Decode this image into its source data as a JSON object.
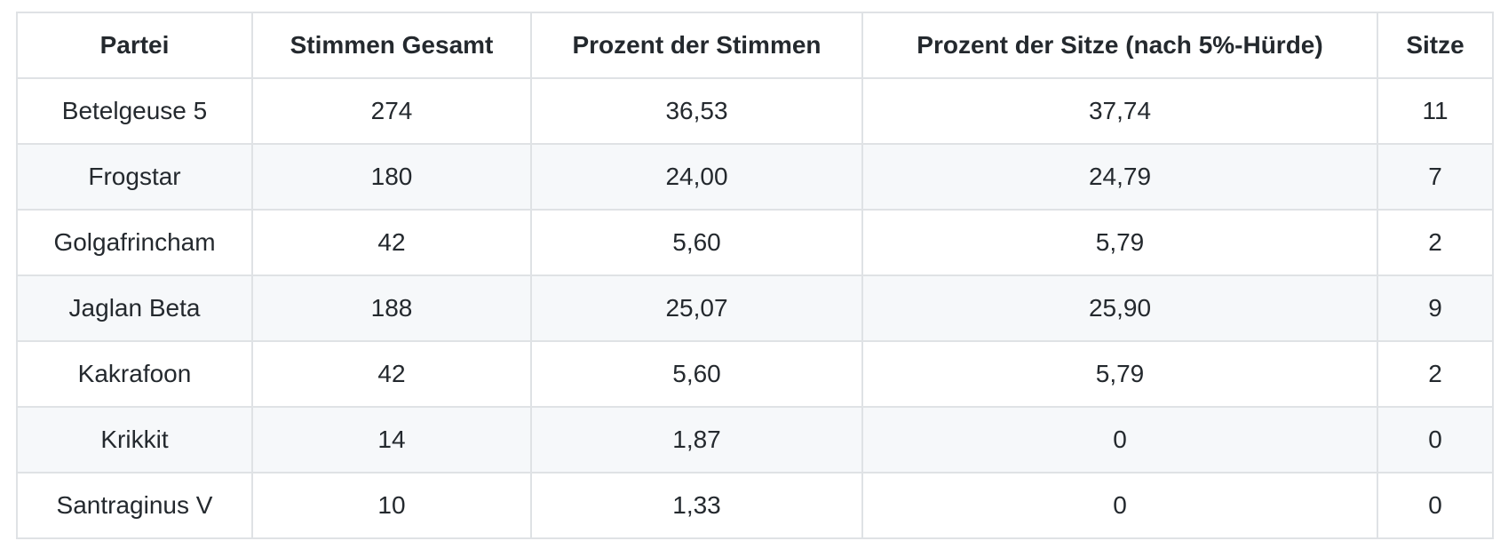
{
  "table": {
    "columns": [
      {
        "key": "partei",
        "label": "Partei"
      },
      {
        "key": "stimmen-gesamt",
        "label": "Stimmen Gesamt"
      },
      {
        "key": "prozent-stimmen",
        "label": "Prozent der Stimmen"
      },
      {
        "key": "prozent-sitze",
        "label": "Prozent der Sitze (nach 5%-Hürde)"
      },
      {
        "key": "sitze",
        "label": "Sitze"
      }
    ],
    "rows": [
      {
        "partei": "Betelgeuse 5",
        "stimmen_gesamt": "274",
        "prozent_stimmen": "36,53",
        "prozent_sitze": "37,74",
        "sitze": "11"
      },
      {
        "partei": "Frogstar",
        "stimmen_gesamt": "180",
        "prozent_stimmen": "24,00",
        "prozent_sitze": "24,79",
        "sitze": "7"
      },
      {
        "partei": "Golgafrincham",
        "stimmen_gesamt": "42",
        "prozent_stimmen": "5,60",
        "prozent_sitze": "5,79",
        "sitze": "2"
      },
      {
        "partei": "Jaglan Beta",
        "stimmen_gesamt": "188",
        "prozent_stimmen": "25,07",
        "prozent_sitze": "25,90",
        "sitze": "9"
      },
      {
        "partei": "Kakrafoon",
        "stimmen_gesamt": "42",
        "prozent_stimmen": "5,60",
        "prozent_sitze": "5,79",
        "sitze": "2"
      },
      {
        "partei": "Krikkit",
        "stimmen_gesamt": "14",
        "prozent_stimmen": "1,87",
        "prozent_sitze": "0",
        "sitze": "0"
      },
      {
        "partei": "Santraginus V",
        "stimmen_gesamt": "10",
        "prozent_stimmen": "1,33",
        "prozent_sitze": "0",
        "sitze": "0"
      }
    ]
  },
  "colors": {
    "background": "#ffffff",
    "border": "#dfe2e5",
    "row_stripe": "#f6f8fa",
    "text": "#24292e"
  }
}
